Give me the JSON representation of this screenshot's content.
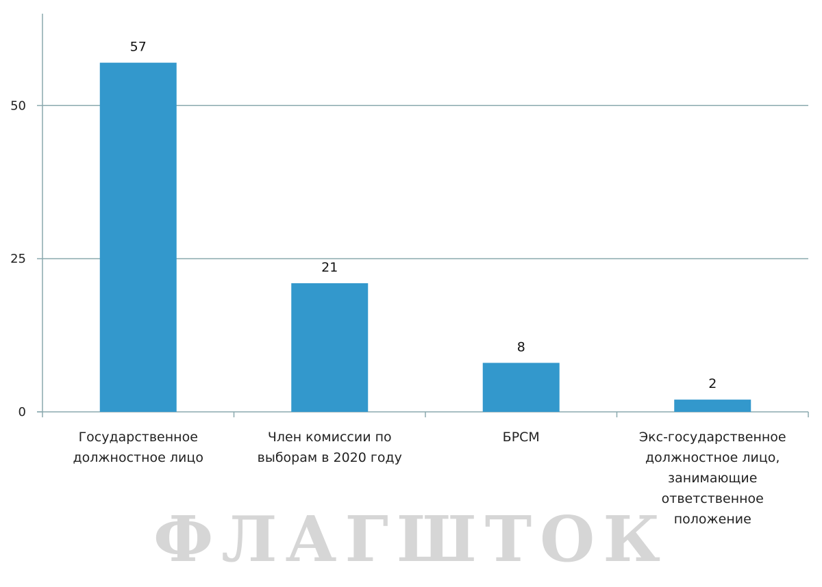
{
  "chart_data": {
    "type": "bar",
    "categories": [
      [
        "Государственное",
        "должностное лицо"
      ],
      [
        "Член комиссии по",
        "выборам в 2020 году"
      ],
      [
        "БРСМ"
      ],
      [
        "Экс-государственное",
        "должностное лицо,",
        "занимающие",
        "ответственное",
        "положение"
      ]
    ],
    "values": [
      57,
      21,
      8,
      2
    ],
    "data_labels": [
      "57",
      "21",
      "8",
      "2"
    ],
    "yticks": [
      0,
      25,
      50
    ],
    "ytick_labels": [
      "0",
      "25",
      "50"
    ],
    "ylim": [
      0,
      65
    ],
    "grid": true,
    "bar_color": "#3398cc",
    "axis_color": "#8aa9ae",
    "title": "",
    "xlabel": "",
    "ylabel": ""
  },
  "watermark": "ФЛАГШТОК"
}
